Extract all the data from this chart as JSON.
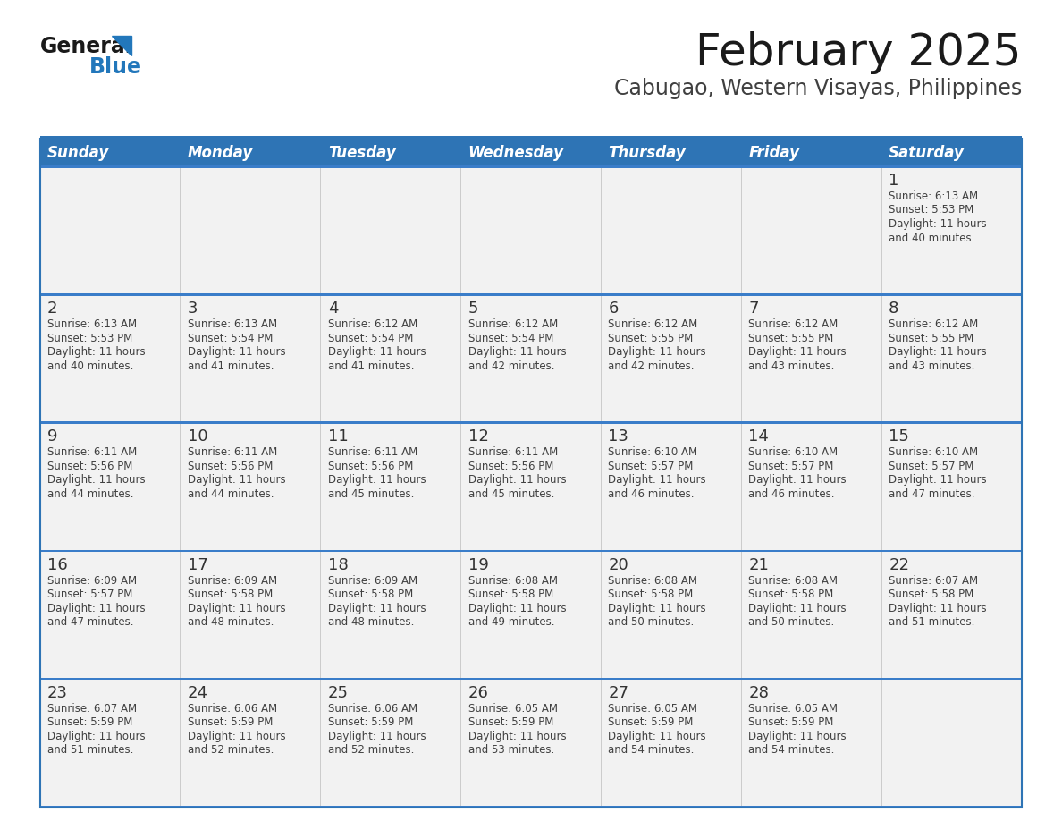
{
  "title": "February 2025",
  "subtitle": "Cabugao, Western Visayas, Philippines",
  "days_of_week": [
    "Sunday",
    "Monday",
    "Tuesday",
    "Wednesday",
    "Thursday",
    "Friday",
    "Saturday"
  ],
  "header_bg": "#2E74B5",
  "header_text": "#FFFFFF",
  "cell_bg": "#F2F2F2",
  "border_color": "#2E74B5",
  "sep_line_color": "#3A7DC9",
  "text_color": "#404040",
  "day_num_color": "#333333",
  "title_color": "#1A1A1A",
  "subtitle_color": "#404040",
  "logo_triangle_color": "#2277BB",
  "calendar_data": [
    [
      null,
      null,
      null,
      null,
      null,
      null,
      {
        "day": 1,
        "sunrise": "6:13 AM",
        "sunset": "5:53 PM",
        "daylight_line1": "Daylight: 11 hours",
        "daylight_line2": "and 40 minutes."
      }
    ],
    [
      {
        "day": 2,
        "sunrise": "6:13 AM",
        "sunset": "5:53 PM",
        "daylight_line1": "Daylight: 11 hours",
        "daylight_line2": "and 40 minutes."
      },
      {
        "day": 3,
        "sunrise": "6:13 AM",
        "sunset": "5:54 PM",
        "daylight_line1": "Daylight: 11 hours",
        "daylight_line2": "and 41 minutes."
      },
      {
        "day": 4,
        "sunrise": "6:12 AM",
        "sunset": "5:54 PM",
        "daylight_line1": "Daylight: 11 hours",
        "daylight_line2": "and 41 minutes."
      },
      {
        "day": 5,
        "sunrise": "6:12 AM",
        "sunset": "5:54 PM",
        "daylight_line1": "Daylight: 11 hours",
        "daylight_line2": "and 42 minutes."
      },
      {
        "day": 6,
        "sunrise": "6:12 AM",
        "sunset": "5:55 PM",
        "daylight_line1": "Daylight: 11 hours",
        "daylight_line2": "and 42 minutes."
      },
      {
        "day": 7,
        "sunrise": "6:12 AM",
        "sunset": "5:55 PM",
        "daylight_line1": "Daylight: 11 hours",
        "daylight_line2": "and 43 minutes."
      },
      {
        "day": 8,
        "sunrise": "6:12 AM",
        "sunset": "5:55 PM",
        "daylight_line1": "Daylight: 11 hours",
        "daylight_line2": "and 43 minutes."
      }
    ],
    [
      {
        "day": 9,
        "sunrise": "6:11 AM",
        "sunset": "5:56 PM",
        "daylight_line1": "Daylight: 11 hours",
        "daylight_line2": "and 44 minutes."
      },
      {
        "day": 10,
        "sunrise": "6:11 AM",
        "sunset": "5:56 PM",
        "daylight_line1": "Daylight: 11 hours",
        "daylight_line2": "and 44 minutes."
      },
      {
        "day": 11,
        "sunrise": "6:11 AM",
        "sunset": "5:56 PM",
        "daylight_line1": "Daylight: 11 hours",
        "daylight_line2": "and 45 minutes."
      },
      {
        "day": 12,
        "sunrise": "6:11 AM",
        "sunset": "5:56 PM",
        "daylight_line1": "Daylight: 11 hours",
        "daylight_line2": "and 45 minutes."
      },
      {
        "day": 13,
        "sunrise": "6:10 AM",
        "sunset": "5:57 PM",
        "daylight_line1": "Daylight: 11 hours",
        "daylight_line2": "and 46 minutes."
      },
      {
        "day": 14,
        "sunrise": "6:10 AM",
        "sunset": "5:57 PM",
        "daylight_line1": "Daylight: 11 hours",
        "daylight_line2": "and 46 minutes."
      },
      {
        "day": 15,
        "sunrise": "6:10 AM",
        "sunset": "5:57 PM",
        "daylight_line1": "Daylight: 11 hours",
        "daylight_line2": "and 47 minutes."
      }
    ],
    [
      {
        "day": 16,
        "sunrise": "6:09 AM",
        "sunset": "5:57 PM",
        "daylight_line1": "Daylight: 11 hours",
        "daylight_line2": "and 47 minutes."
      },
      {
        "day": 17,
        "sunrise": "6:09 AM",
        "sunset": "5:58 PM",
        "daylight_line1": "Daylight: 11 hours",
        "daylight_line2": "and 48 minutes."
      },
      {
        "day": 18,
        "sunrise": "6:09 AM",
        "sunset": "5:58 PM",
        "daylight_line1": "Daylight: 11 hours",
        "daylight_line2": "and 48 minutes."
      },
      {
        "day": 19,
        "sunrise": "6:08 AM",
        "sunset": "5:58 PM",
        "daylight_line1": "Daylight: 11 hours",
        "daylight_line2": "and 49 minutes."
      },
      {
        "day": 20,
        "sunrise": "6:08 AM",
        "sunset": "5:58 PM",
        "daylight_line1": "Daylight: 11 hours",
        "daylight_line2": "and 50 minutes."
      },
      {
        "day": 21,
        "sunrise": "6:08 AM",
        "sunset": "5:58 PM",
        "daylight_line1": "Daylight: 11 hours",
        "daylight_line2": "and 50 minutes."
      },
      {
        "day": 22,
        "sunrise": "6:07 AM",
        "sunset": "5:58 PM",
        "daylight_line1": "Daylight: 11 hours",
        "daylight_line2": "and 51 minutes."
      }
    ],
    [
      {
        "day": 23,
        "sunrise": "6:07 AM",
        "sunset": "5:59 PM",
        "daylight_line1": "Daylight: 11 hours",
        "daylight_line2": "and 51 minutes."
      },
      {
        "day": 24,
        "sunrise": "6:06 AM",
        "sunset": "5:59 PM",
        "daylight_line1": "Daylight: 11 hours",
        "daylight_line2": "and 52 minutes."
      },
      {
        "day": 25,
        "sunrise": "6:06 AM",
        "sunset": "5:59 PM",
        "daylight_line1": "Daylight: 11 hours",
        "daylight_line2": "and 52 minutes."
      },
      {
        "day": 26,
        "sunrise": "6:05 AM",
        "sunset": "5:59 PM",
        "daylight_line1": "Daylight: 11 hours",
        "daylight_line2": "and 53 minutes."
      },
      {
        "day": 27,
        "sunrise": "6:05 AM",
        "sunset": "5:59 PM",
        "daylight_line1": "Daylight: 11 hours",
        "daylight_line2": "and 54 minutes."
      },
      {
        "day": 28,
        "sunrise": "6:05 AM",
        "sunset": "5:59 PM",
        "daylight_line1": "Daylight: 11 hours",
        "daylight_line2": "and 54 minutes."
      },
      null
    ]
  ]
}
